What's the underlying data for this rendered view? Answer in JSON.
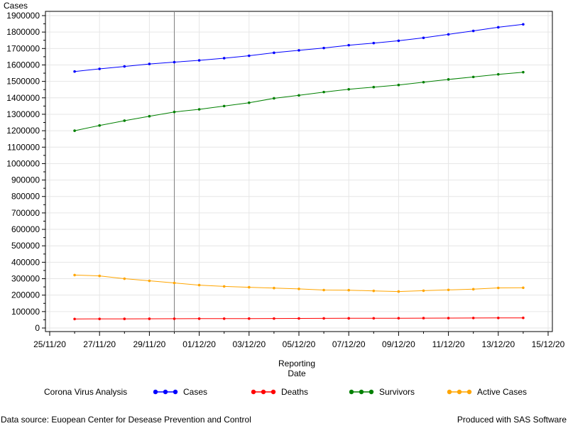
{
  "chart_data": {
    "type": "line",
    "y_axis_title": "Cases",
    "x_axis_title_lines": [
      "Reporting",
      "Date"
    ],
    "ylim": [
      0,
      1900000
    ],
    "y_ticks": [
      0,
      100000,
      200000,
      300000,
      400000,
      500000,
      600000,
      700000,
      800000,
      900000,
      1000000,
      1100000,
      1200000,
      1300000,
      1400000,
      1500000,
      1600000,
      1700000,
      1800000,
      1900000
    ],
    "x_tick_labels": [
      "25/11/20",
      "27/11/20",
      "29/11/20",
      "01/12/20",
      "03/12/20",
      "05/12/20",
      "07/12/20",
      "09/12/20",
      "11/12/20",
      "13/12/20",
      "15/12/20"
    ],
    "x_tick_day_index": [
      0,
      2,
      4,
      6,
      8,
      10,
      12,
      14,
      16,
      18,
      20
    ],
    "x_dates": [
      "26/11/20",
      "27/11/20",
      "28/11/20",
      "29/11/20",
      "30/11/20",
      "01/12/20",
      "02/12/20",
      "03/12/20",
      "04/12/20",
      "05/12/20",
      "06/12/20",
      "07/12/20",
      "08/12/20",
      "09/12/20",
      "10/12/20",
      "11/12/20",
      "12/12/20",
      "13/12/20",
      "14/12/20"
    ],
    "x_day_index": [
      1,
      2,
      3,
      4,
      5,
      6,
      7,
      8,
      9,
      10,
      11,
      12,
      13,
      14,
      15,
      16,
      17,
      18,
      19
    ],
    "reference_line_date": "30/11/20",
    "reference_line_day_index": 5,
    "grid": true,
    "legend_position": "bottom",
    "series": [
      {
        "name": "Cases",
        "color": "#0000ff",
        "values": [
          1560000,
          1576000,
          1591000,
          1606000,
          1617000,
          1628000,
          1641000,
          1656000,
          1674000,
          1689000,
          1703000,
          1720000,
          1733000,
          1747000,
          1765000,
          1786000,
          1807000,
          1829000,
          1847000
        ]
      },
      {
        "name": "Deaths",
        "color": "#ff0000",
        "values": [
          55000,
          55500,
          55800,
          56200,
          56500,
          56800,
          57100,
          57400,
          57800,
          58200,
          58600,
          59000,
          59300,
          59700,
          60100,
          60500,
          60900,
          61300,
          61700
        ]
      },
      {
        "name": "Survivors",
        "color": "#008000",
        "values": [
          1200000,
          1232000,
          1261000,
          1288000,
          1314000,
          1330000,
          1350000,
          1370000,
          1397000,
          1415000,
          1435000,
          1452000,
          1465000,
          1478000,
          1495000,
          1512000,
          1527000,
          1543000,
          1556000
        ]
      },
      {
        "name": "Active Cases",
        "color": "#ffa500",
        "values": [
          322000,
          317000,
          300000,
          287000,
          274000,
          261000,
          253000,
          248000,
          243000,
          238000,
          231000,
          230000,
          226000,
          222000,
          227000,
          232000,
          236000,
          244000,
          245000
        ]
      }
    ]
  },
  "legend_title": "Corona Virus Analysis",
  "footer": {
    "source": "Data source: Euopean Center for Desease Prevention and Control",
    "producer": "Produced with SAS Software"
  }
}
